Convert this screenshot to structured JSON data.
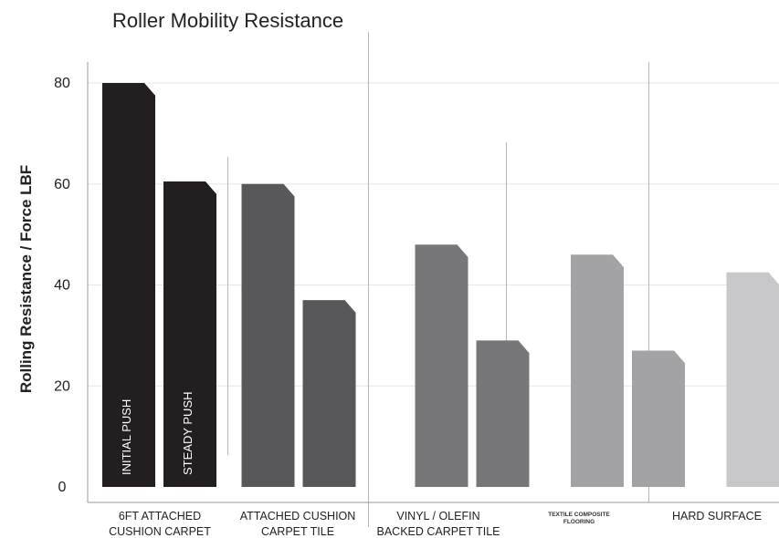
{
  "chart_data": {
    "type": "bar",
    "title": "Roller Mobility Resistance",
    "ylabel": "Rolling Resistance / Force LBF",
    "xlabel": "",
    "ylim": [
      0,
      80
    ],
    "yticks": [
      0,
      20,
      40,
      60,
      80
    ],
    "grid": true,
    "categories": [
      [
        "6FT ATTACHED",
        "CUSHION CARPET"
      ],
      [
        "ATTACHED CUSHION",
        "CARPET TILE"
      ],
      [
        "VINYL / OLEFIN",
        "BACKED CARPET TILE"
      ],
      [
        "TEXTILE COMPOSITE",
        "FLOORING"
      ],
      [
        "HARD SURFACE"
      ]
    ],
    "series": [
      {
        "name": "INITIAL PUSH",
        "values": [
          80,
          60,
          48,
          46,
          42.5
        ]
      },
      {
        "name": "STEADY PUSH",
        "values": [
          60.5,
          37,
          29,
          27,
          24
        ]
      }
    ],
    "colors": [
      "#231f20",
      "#58585a",
      "#77777a",
      "#a3a3a6",
      "#c8c8ca"
    ]
  }
}
